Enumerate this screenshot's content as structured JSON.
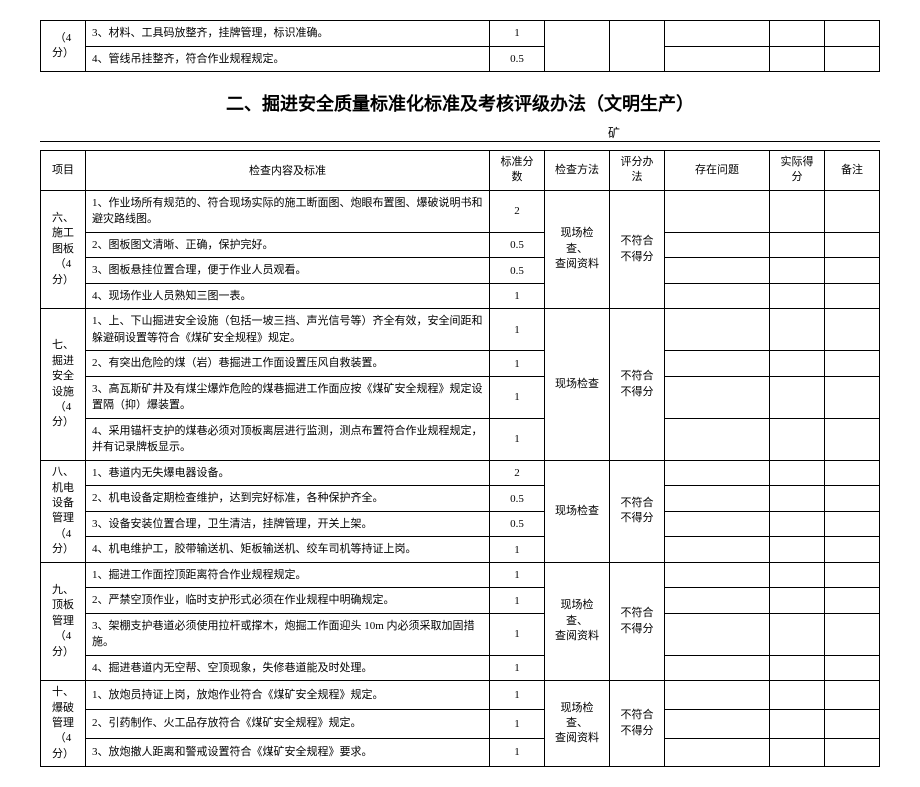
{
  "top_table": {
    "proj_label": "（4分）",
    "rows": [
      {
        "content": "3、材料、工具码放整齐，挂牌管理，标识准确。",
        "score": "1"
      },
      {
        "content": "4、管线吊挂整齐，符合作业规程规定。",
        "score": "0.5"
      }
    ]
  },
  "title": "二、掘进安全质量标准化标准及考核评级办法（文明生产）",
  "subtitle_suffix": "矿",
  "header": {
    "proj": "项目",
    "content": "检查内容及标准",
    "score": "标准分数",
    "method": "检查方法",
    "grade": "评分办法",
    "issue": "存在问题",
    "actual": "实际得分",
    "note": "备注"
  },
  "sections": [
    {
      "proj": "六、\n施工\n图板\n（4 分）",
      "method": "现场检查、\n查阅资料",
      "grade": "不符合\n不得分",
      "rows": [
        {
          "content": "1、作业场所有规范的、符合现场实际的施工断面图、炮眼布置图、爆破说明书和避灾路线图。",
          "score": "2"
        },
        {
          "content": "2、图板图文清晰、正确，保护完好。",
          "score": "0.5"
        },
        {
          "content": "3、图板悬挂位置合理，便于作业人员观看。",
          "score": "0.5"
        },
        {
          "content": "4、现场作业人员熟知三图一表。",
          "score": "1"
        }
      ]
    },
    {
      "proj": "七、\n掘进\n安全\n设施\n（4 分）",
      "method": "现场检查",
      "grade": "不符合\n不得分",
      "rows": [
        {
          "content": "1、上、下山掘进安全设施（包括一坡三挡、声光信号等）齐全有效，安全间距和躲避硐设置等符合《煤矿安全规程》规定。",
          "score": "1"
        },
        {
          "content": "2、有突出危险的煤（岩）巷掘进工作面设置压风自救装置。",
          "score": "1"
        },
        {
          "content": "3、高瓦斯矿井及有煤尘爆炸危险的煤巷掘进工作面应按《煤矿安全规程》规定设置隔（抑）爆装置。",
          "score": "1"
        },
        {
          "content": "4、采用锚杆支护的煤巷必须对顶板离层进行监测，测点布置符合作业规程规定，并有记录牌板显示。",
          "score": "1"
        }
      ]
    },
    {
      "proj": "八、\n机电\n设备\n管理\n（4 分）",
      "method": "现场检查",
      "grade": "不符合\n不得分",
      "rows": [
        {
          "content": "1、巷道内无失爆电器设备。",
          "score": "2"
        },
        {
          "content": "2、机电设备定期检查维护，达到完好标准，各种保护齐全。",
          "score": "0.5"
        },
        {
          "content": "3、设备安装位置合理，卫生清洁，挂牌管理，开关上架。",
          "score": "0.5"
        },
        {
          "content": "4、机电维护工，胶带输送机、矩板输送机、绞车司机等持证上岗。",
          "score": "1"
        }
      ]
    },
    {
      "proj": "九、\n顶板\n管理\n（4 分）",
      "method": "现场检查、\n查阅资料",
      "grade": "不符合\n不得分",
      "rows": [
        {
          "content": "1、掘进工作面控顶距离符合作业规程规定。",
          "score": "1"
        },
        {
          "content": "2、严禁空顶作业，临时支护形式必须在作业规程中明确规定。",
          "score": "1"
        },
        {
          "content": "3、架棚支护巷道必须使用拉杆或撑木，炮掘工作面迎头 10m 内必须采取加固措施。",
          "score": "1"
        },
        {
          "content": "4、掘进巷道内无空帮、空顶现象，失修巷道能及时处理。",
          "score": "1"
        }
      ]
    },
    {
      "proj": "十、\n爆破\n管理\n（4 分）",
      "method": "现场检查、\n查阅资料",
      "grade": "不符合\n不得分",
      "rows": [
        {
          "content": "1、放炮员持证上岗，放炮作业符合《煤矿安全规程》规定。",
          "score": "1"
        },
        {
          "content": "2、引药制作、火工品存放符合《煤矿安全规程》规定。",
          "score": "1"
        },
        {
          "content": "3、放炮撤人距离和警戒设置符合《煤矿安全规程》要求。",
          "score": "1"
        }
      ]
    }
  ]
}
